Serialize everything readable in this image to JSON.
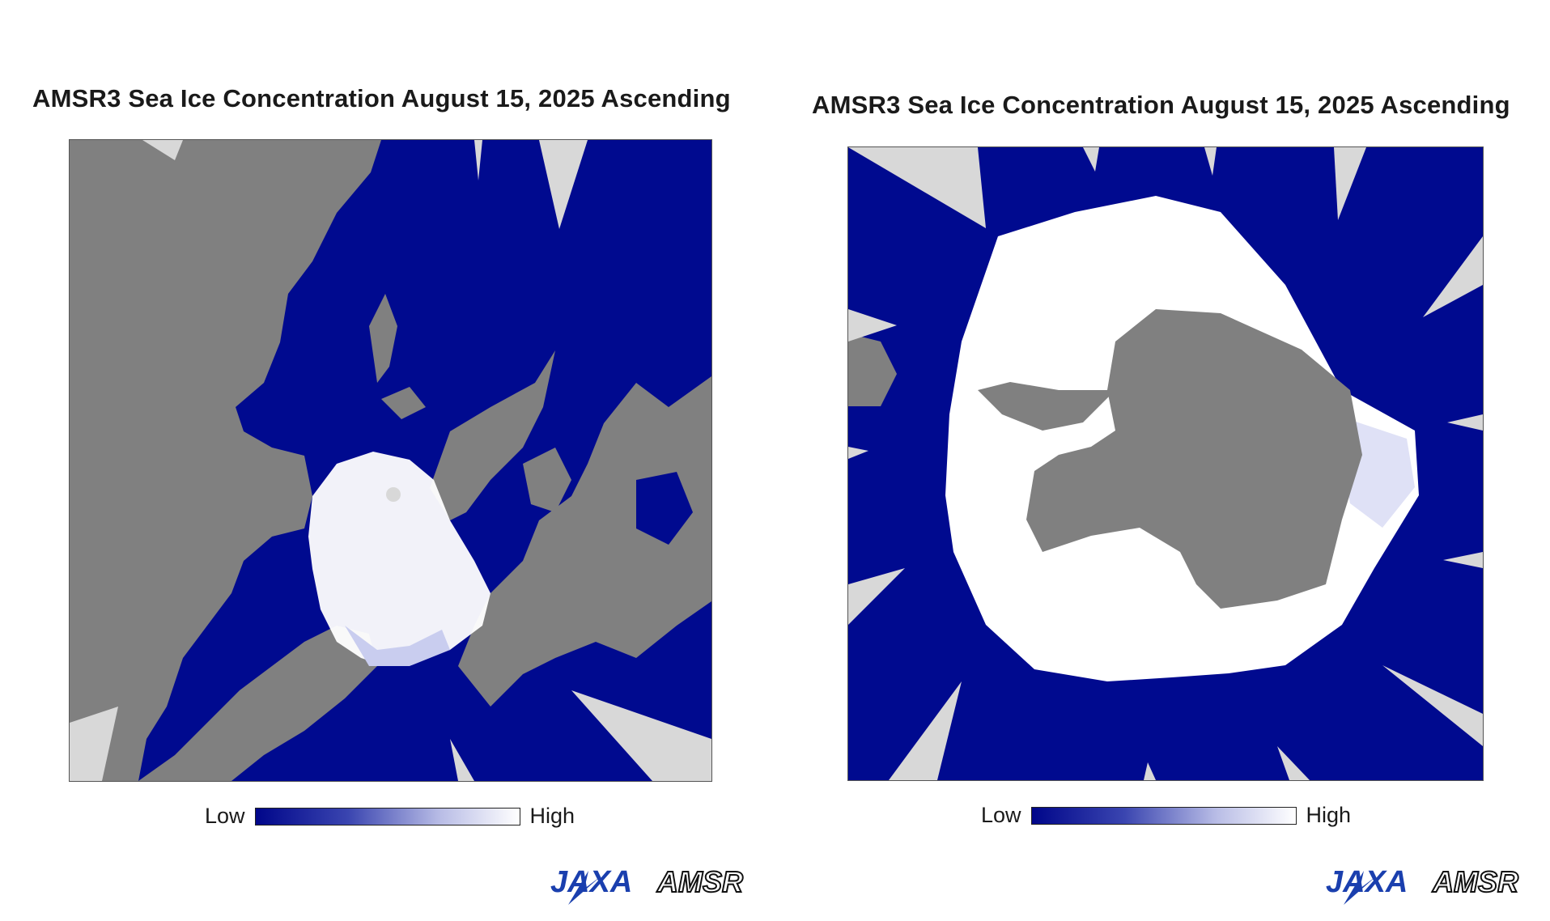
{
  "panels": [
    {
      "title": "AMSR3 Sea Ice Concentration August 15, 2025 Ascending",
      "hemisphere": "north",
      "legend": {
        "low": "Low",
        "high": "High"
      }
    },
    {
      "title": "AMSR3 Sea Ice Concentration August 15, 2025 Ascending",
      "hemisphere": "south",
      "legend": {
        "low": "Low",
        "high": "High"
      }
    }
  ],
  "logos": {
    "jaxa": "JAXA",
    "amsr": "AMSR"
  },
  "colors": {
    "ocean": "#000a8f",
    "land": "#808080",
    "no_data": "#d8d8d8",
    "ice_high": "#ffffff",
    "ice_low": "#00068a",
    "jaxa_blue": "#1a3fae"
  }
}
